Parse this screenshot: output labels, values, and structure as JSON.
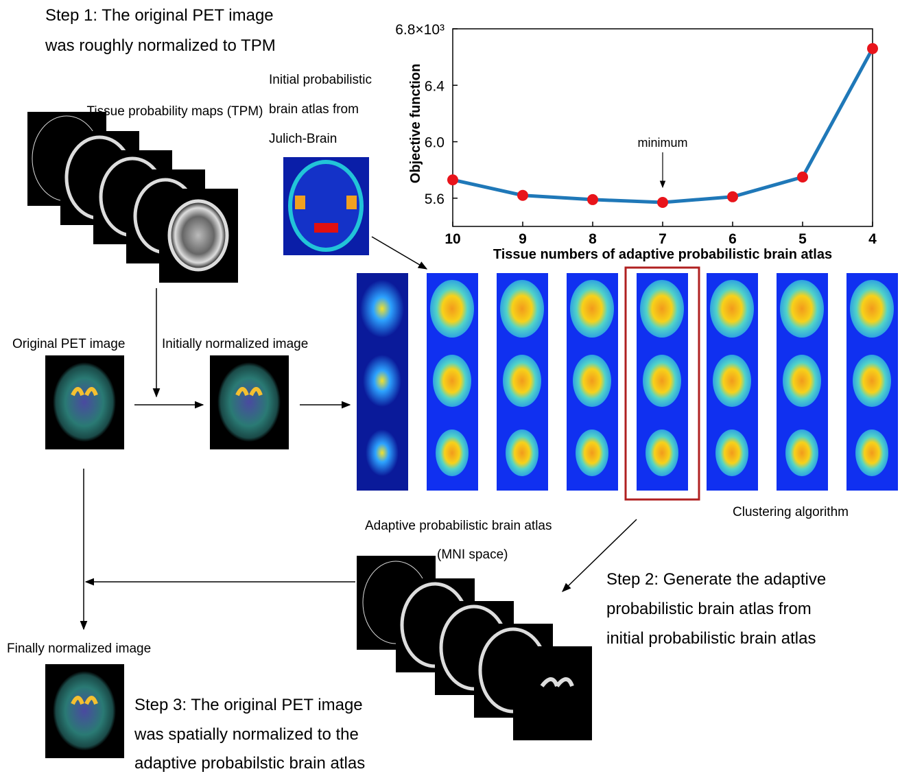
{
  "step1": [
    "Step 1: The original PET image",
    "was roughly normalized to TPM"
  ],
  "tpm_label": "Tissue probability maps (TPM)",
  "julich_label": [
    "Initial probabilistic",
    "brain atlas from",
    "Julich-Brain"
  ],
  "original_label": "Original PET image",
  "initial_label": "Initially normalized image",
  "clustering_label": "Clustering algorithm",
  "adaptive_label": [
    "Adaptive probabilistic brain atlas",
    "(MNI space)"
  ],
  "step2": [
    "Step 2: Generate the adaptive",
    "probabilistic brain atlas from",
    "initial probabilistic brain atlas"
  ],
  "final_label": "Finally normalized image",
  "step3": [
    "Step 3: The original PET image",
    "was spatially normalized to the",
    "adaptive probabilstic brain atlas"
  ],
  "chart_data": {
    "type": "line",
    "xlabel": "Tissue numbers of adaptive probabilistic brain atlas",
    "ylabel": "Objective function",
    "categories": [
      "10",
      "9",
      "8",
      "7",
      "6",
      "5",
      "4"
    ],
    "values": [
      5.73,
      5.62,
      5.59,
      5.57,
      5.61,
      5.75,
      6.66
    ],
    "color": "#1f78b8",
    "marker_color": "#e8141b",
    "ylim": [
      5.4,
      6.8
    ],
    "yticks": [
      5.6,
      {
        "value": 6,
        "label": "6.0"
      },
      6.4,
      {
        "value": 6.8,
        "label": "6.8×10³"
      }
    ],
    "annotation": "minimum"
  }
}
